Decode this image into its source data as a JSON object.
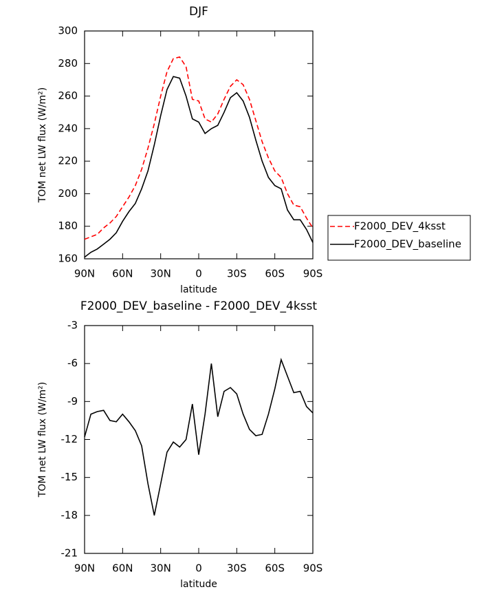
{
  "chart_data": [
    {
      "type": "line",
      "title": "DJF",
      "xlabel": "latitude",
      "ylabel": "TOM net LW flux (W/m²)",
      "x": [
        90,
        85,
        80,
        75,
        70,
        65,
        60,
        55,
        50,
        45,
        40,
        35,
        30,
        25,
        20,
        15,
        10,
        5,
        0,
        -5,
        -10,
        -15,
        -20,
        -25,
        -30,
        -35,
        -40,
        -45,
        -50,
        -55,
        -60,
        -65,
        -70,
        -75,
        -80,
        -85,
        -90
      ],
      "series": [
        {
          "name": "F2000_DEV_4ksst",
          "color": "#ff0000",
          "line_style": "dashed",
          "values": [
            172,
            173.5,
            175,
            179,
            182,
            186,
            192,
            198,
            205,
            215,
            228,
            243,
            260,
            275,
            283,
            284,
            278,
            258,
            257,
            246,
            244,
            249,
            258,
            266,
            270,
            267,
            258,
            245,
            232,
            222,
            214,
            210,
            200,
            193,
            192,
            185,
            179
          ]
        },
        {
          "name": "F2000_DEV_baseline",
          "color": "#000000",
          "line_style": "solid",
          "values": [
            161,
            164,
            166,
            169,
            172,
            176,
            183,
            189,
            194,
            203,
            214,
            230,
            248,
            264,
            272,
            271,
            260,
            246,
            244,
            237,
            240,
            242,
            250,
            259,
            262,
            257,
            247,
            233,
            220,
            210,
            205,
            203,
            190,
            184,
            184,
            178,
            170
          ]
        }
      ],
      "xlim": [
        90,
        -90
      ],
      "xticks": [
        {
          "value": 90,
          "label": "90N"
        },
        {
          "value": 60,
          "label": "60N"
        },
        {
          "value": 30,
          "label": "30N"
        },
        0,
        {
          "value": -30,
          "label": "30S"
        },
        {
          "value": -60,
          "label": "60S"
        },
        {
          "value": -90,
          "label": "90S"
        }
      ],
      "ylim": [
        160,
        300
      ],
      "yticks": [
        160,
        180,
        200,
        220,
        240,
        260,
        280,
        300
      ],
      "legend": "outside-right"
    },
    {
      "type": "line",
      "title": "F2000_DEV_baseline - F2000_DEV_4ksst",
      "xlabel": "latitude",
      "ylabel": "TOM net LW flux (W/m²)",
      "x": [
        90,
        85,
        80,
        75,
        70,
        65,
        60,
        55,
        50,
        45,
        40,
        35,
        30,
        25,
        20,
        15,
        10,
        5,
        0,
        -5,
        -10,
        -15,
        -20,
        -25,
        -30,
        -35,
        -40,
        -45,
        -50,
        -55,
        -60,
        -65,
        -70,
        -75,
        -80,
        -85,
        -90
      ],
      "values": [
        -11.8,
        -10,
        -9.8,
        -9.7,
        -10.5,
        -10.6,
        -10,
        -10.6,
        -11.3,
        -12.5,
        -15.5,
        -18,
        -15.5,
        -13,
        -12.2,
        -12.6,
        -12,
        -9.2,
        -13.2,
        -10,
        -6,
        -10.2,
        -8.2,
        -7.9,
        -8.4,
        -10,
        -11.2,
        -11.7,
        -11.6,
        -10,
        -8,
        -5.7,
        -7,
        -8.3,
        -8.2,
        -9.4,
        -9.9
      ],
      "color": "#000000",
      "xlim": [
        90,
        -90
      ],
      "xticks": [
        {
          "value": 90,
          "label": "90N"
        },
        {
          "value": 60,
          "label": "60N"
        },
        {
          "value": 30,
          "label": "30N"
        },
        0,
        {
          "value": -30,
          "label": "30S"
        },
        {
          "value": -60,
          "label": "60S"
        },
        {
          "value": -90,
          "label": "90S"
        }
      ],
      "ylim": [
        -21,
        -3
      ],
      "yticks": [
        -21,
        -18,
        -15,
        -12,
        -9,
        -6,
        -3
      ]
    }
  ]
}
